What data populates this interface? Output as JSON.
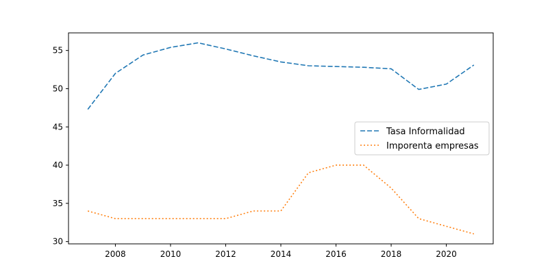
{
  "chart_data": {
    "type": "line",
    "title": "",
    "xlabel": "",
    "ylabel": "",
    "x": [
      2007,
      2008,
      2009,
      2010,
      2011,
      2012,
      2013,
      2014,
      2015,
      2016,
      2017,
      2018,
      2019,
      2020,
      2021
    ],
    "xlim": [
      2006.3,
      2021.7
    ],
    "ylim": [
      29.7,
      57.3
    ],
    "xticks": [
      2008,
      2010,
      2012,
      2014,
      2016,
      2018,
      2020
    ],
    "yticks": [
      30,
      35,
      40,
      45,
      50,
      55
    ],
    "grid": false,
    "legend_position": "center-right",
    "series": [
      {
        "name": "Tasa Informalidad",
        "color": "#1f77b4",
        "line_style": "dashed",
        "values": [
          47.3,
          52.0,
          54.4,
          55.4,
          56.0,
          55.2,
          54.3,
          53.5,
          53.0,
          52.9,
          52.8,
          52.6,
          49.9,
          50.6,
          53.1
        ]
      },
      {
        "name": "Imporenta empresas",
        "color": "#ff7f0e",
        "line_style": "dotted",
        "values": [
          34,
          33,
          33,
          33,
          33,
          33,
          34,
          34,
          39,
          40,
          40,
          37,
          33,
          32,
          31
        ]
      }
    ]
  }
}
